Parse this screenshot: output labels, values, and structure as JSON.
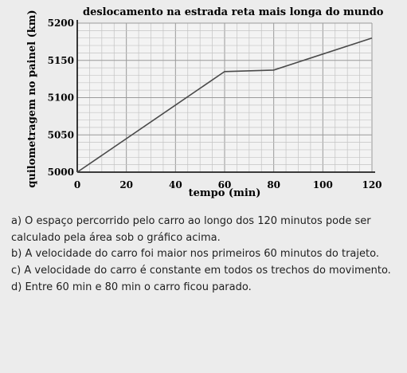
{
  "chart_data": {
    "type": "line",
    "title": "deslocamento na estrada reta mais longa do mundo",
    "xlabel": "tempo (min)",
    "ylabel": "quilometragem no painel (km)",
    "x_ticks": [
      0,
      20,
      40,
      60,
      80,
      100,
      120
    ],
    "y_ticks": [
      5000,
      5050,
      5100,
      5150,
      5200
    ],
    "xlim": [
      0,
      120
    ],
    "ylim": [
      5000,
      5200
    ],
    "grid": true,
    "series": [
      {
        "x": [
          0,
          60,
          80,
          120
        ],
        "y": [
          5000,
          5135,
          5137,
          5180
        ],
        "color": "#4a4a4a"
      }
    ]
  },
  "questions": [
    "a) O espaço percorrido pelo carro ao longo dos 120 minutos pode ser calculado pela área sob o gráfico acima.",
    "b) A velocidade do carro foi maior nos primeiros 60 minutos do trajeto.",
    "c) A velocidade do carro é constante em todos os trechos do movimento.",
    "d) Entre 60 min e 80 min o carro ficou parado."
  ]
}
